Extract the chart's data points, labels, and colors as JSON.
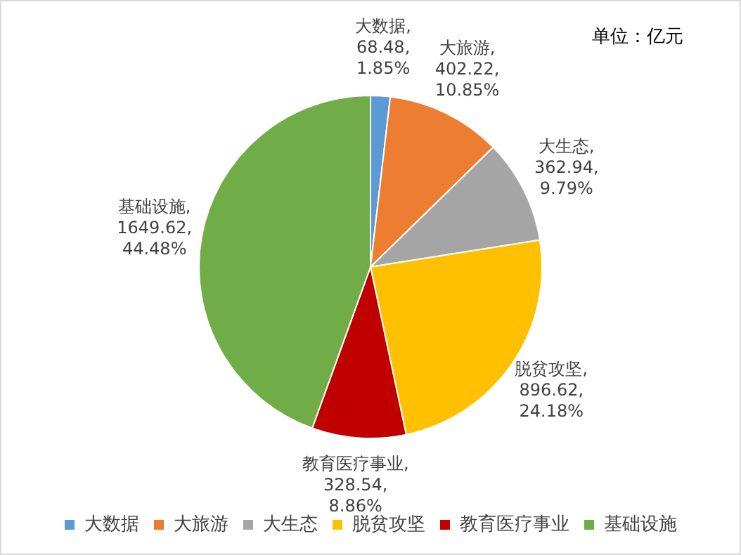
{
  "chart_data": {
    "type": "pie",
    "categories": [
      "大数据",
      "大旅游",
      "大生态",
      "脱贫攻坚",
      "教育医疗事业",
      "基础设施"
    ],
    "values": [
      68.48,
      402.22,
      362.94,
      896.62,
      328.54,
      1649.62
    ],
    "colors": [
      "#5b9bd5",
      "#ed7d31",
      "#a5a5a5",
      "#ffc000",
      "#c00000",
      "#70ad47"
    ],
    "value_labels": [
      "大数据, 68.48, 1.85%",
      "大旅游, 402.22, 10.85%",
      "大生态, 362.94, 9.79%",
      "脱贫攻坚, 896.62, 24.18%",
      "教育医疗事业, 328.54, 8.86%",
      "基础设施, 1649.62, 44.48%"
    ],
    "annotations": [
      "单位：亿元"
    ],
    "legend": "bottom"
  }
}
